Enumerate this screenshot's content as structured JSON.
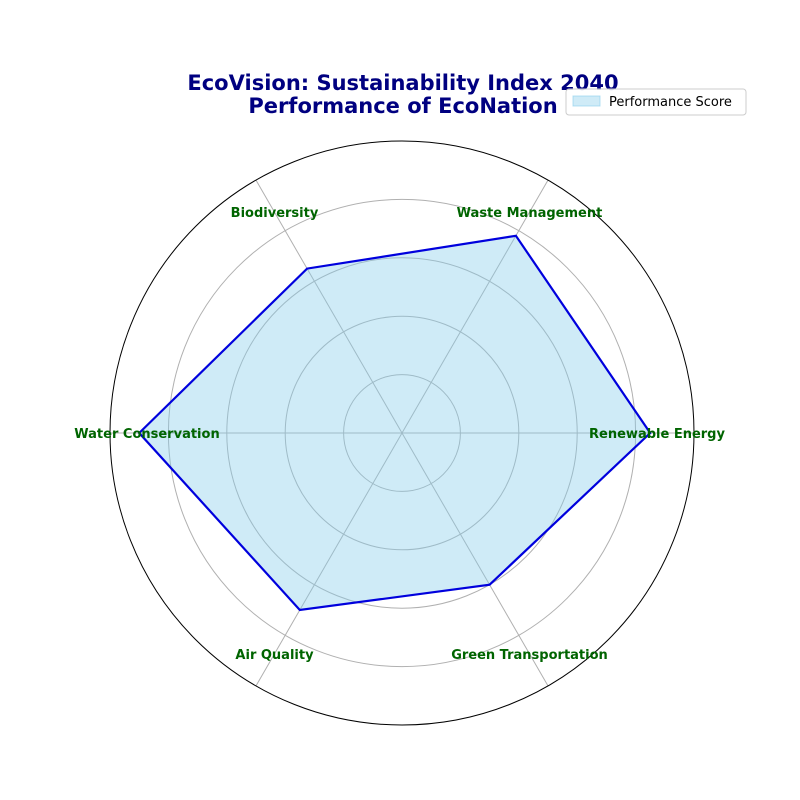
{
  "chart_data": {
    "type": "radar",
    "title_lines": [
      "EcoVision: Sustainability Index 2040",
      "Performance of EcoNation"
    ],
    "categories": [
      "Renewable Energy",
      "Waste Management",
      "Biodiversity",
      "Water Conservation",
      "Air Quality",
      "Green Transportation"
    ],
    "series": [
      {
        "name": "Performance Score",
        "values": [
          85,
          78,
          65,
          90,
          70,
          60
        ]
      }
    ],
    "rlim": [
      0,
      100
    ],
    "grid": true,
    "legend_position": "top-right",
    "colors": {
      "line": "#0000dd",
      "fill": "#87ceeb",
      "title": "#000080",
      "labels": "#006400",
      "grid": "#b0b0b0",
      "frame": "#000000"
    }
  }
}
